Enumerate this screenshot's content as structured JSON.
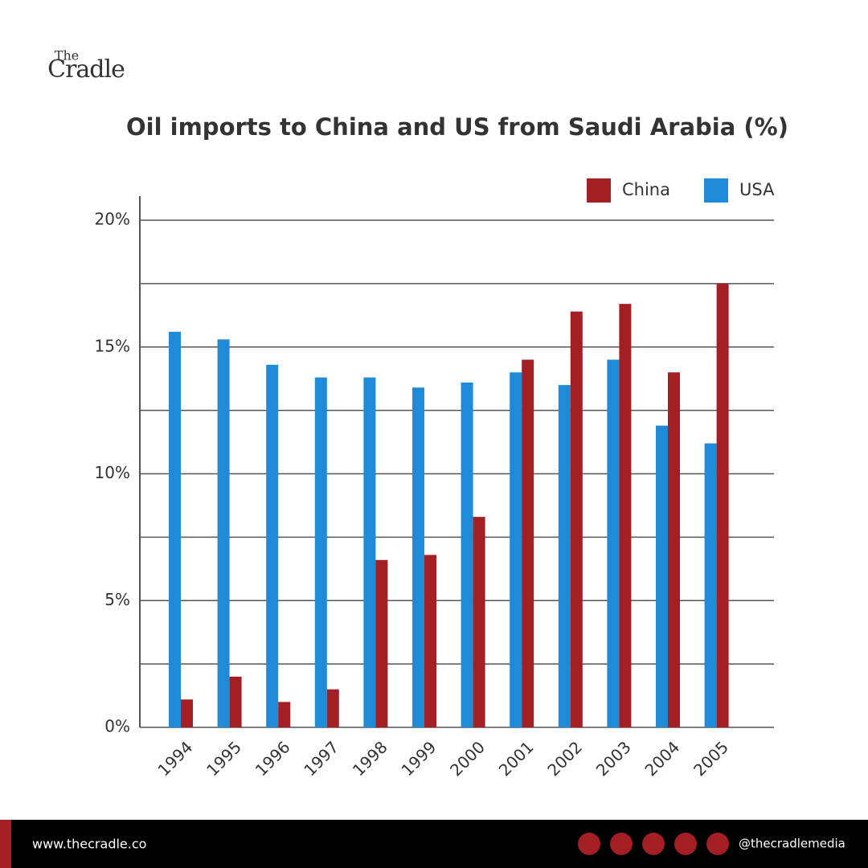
{
  "logo": {
    "top": "The",
    "main": "Cradle"
  },
  "chart_data": {
    "type": "bar",
    "title": "Oil imports to China and US from Saudi Arabia (%)",
    "categories": [
      "1994",
      "1995",
      "1996",
      "1997",
      "1998",
      "1999",
      "2000",
      "2001",
      "2002",
      "2003",
      "2004",
      "2005"
    ],
    "series": [
      {
        "name": "USA",
        "color": "#1f8ad8",
        "values": [
          15.6,
          15.3,
          14.3,
          13.8,
          13.8,
          13.4,
          13.6,
          14.0,
          13.5,
          14.5,
          11.9,
          11.2
        ]
      },
      {
        "name": "China",
        "color": "#a31f24",
        "values": [
          1.1,
          2.0,
          1.0,
          1.5,
          6.6,
          6.8,
          8.3,
          14.5,
          16.4,
          16.7,
          14.0,
          17.5
        ]
      }
    ],
    "legend_order": [
      "China",
      "USA"
    ],
    "ylim": [
      0,
      20
    ],
    "yticks": [
      {
        "value": 0,
        "label": "0%"
      },
      {
        "value": 5,
        "label": "5%"
      },
      {
        "value": 10,
        "label": "10%"
      },
      {
        "value": 15,
        "label": "15%"
      },
      {
        "value": 20,
        "label": "20%"
      }
    ],
    "yminorticks": [
      2.5,
      7.5,
      12.5,
      17.5
    ],
    "grid": true,
    "legend": "top-right"
  },
  "footer": {
    "website": "www.thecradle.co",
    "handle": "@thecradlemedia"
  }
}
